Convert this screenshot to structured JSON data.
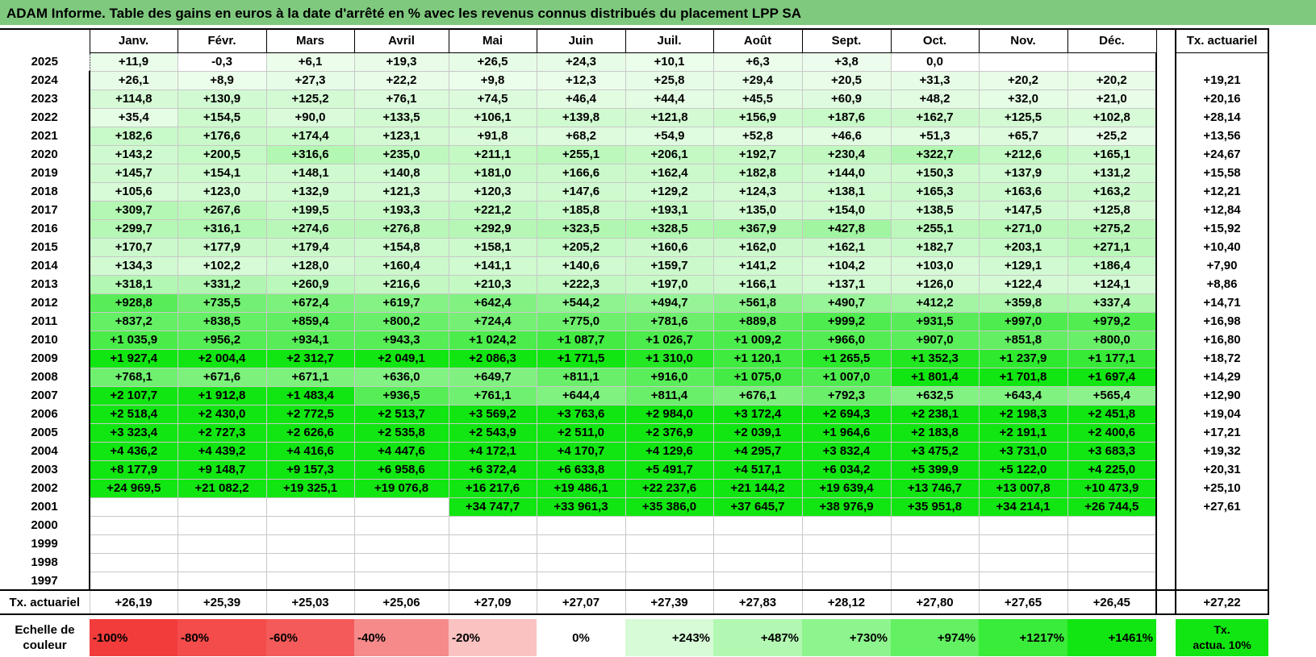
{
  "title": "ADAM Informe. Table des gains en euros à la date d'arrêté en % avec les revenus connus distribués du placement LPP SA",
  "months": [
    "Janv.",
    "Févr.",
    "Mars",
    "Avril",
    "Mai",
    "Juin",
    "Juil.",
    "Août",
    "Sept.",
    "Oct.",
    "Nov.",
    "Déc."
  ],
  "actuarial_header": "Tx. actuariel",
  "rows": [
    {
      "year": "2025",
      "values": [
        "+11,9",
        "-0,3",
        "+6,1",
        "+19,3",
        "+26,5",
        "+24,3",
        "+10,1",
        "+6,3",
        "+3,8",
        "0,0",
        "",
        ""
      ],
      "rate": ""
    },
    {
      "year": "2024",
      "values": [
        "+26,1",
        "+8,9",
        "+27,3",
        "+22,2",
        "+9,8",
        "+12,3",
        "+25,8",
        "+29,4",
        "+20,5",
        "+31,3",
        "+20,2",
        "+20,2"
      ],
      "rate": "+19,21"
    },
    {
      "year": "2023",
      "values": [
        "+114,8",
        "+130,9",
        "+125,2",
        "+76,1",
        "+74,5",
        "+46,4",
        "+44,4",
        "+45,5",
        "+60,9",
        "+48,2",
        "+32,0",
        "+21,0"
      ],
      "rate": "+20,16"
    },
    {
      "year": "2022",
      "values": [
        "+35,4",
        "+154,5",
        "+90,0",
        "+133,5",
        "+106,1",
        "+139,8",
        "+121,8",
        "+156,9",
        "+187,6",
        "+162,7",
        "+125,5",
        "+102,8"
      ],
      "rate": "+28,14"
    },
    {
      "year": "2021",
      "values": [
        "+182,6",
        "+176,6",
        "+174,4",
        "+123,1",
        "+91,8",
        "+68,2",
        "+54,9",
        "+52,8",
        "+46,6",
        "+51,3",
        "+65,7",
        "+25,2"
      ],
      "rate": "+13,56"
    },
    {
      "year": "2020",
      "values": [
        "+143,2",
        "+200,5",
        "+316,6",
        "+235,0",
        "+211,1",
        "+255,1",
        "+206,1",
        "+192,7",
        "+230,4",
        "+322,7",
        "+212,6",
        "+165,1"
      ],
      "rate": "+24,67"
    },
    {
      "year": "2019",
      "values": [
        "+145,7",
        "+154,1",
        "+148,1",
        "+140,8",
        "+181,0",
        "+166,6",
        "+162,4",
        "+182,8",
        "+144,0",
        "+150,3",
        "+137,9",
        "+131,2"
      ],
      "rate": "+15,58"
    },
    {
      "year": "2018",
      "values": [
        "+105,6",
        "+123,0",
        "+132,9",
        "+121,3",
        "+120,3",
        "+147,6",
        "+129,2",
        "+124,3",
        "+138,1",
        "+165,3",
        "+163,6",
        "+163,2"
      ],
      "rate": "+12,21"
    },
    {
      "year": "2017",
      "values": [
        "+309,7",
        "+267,6",
        "+199,5",
        "+193,3",
        "+221,2",
        "+185,8",
        "+193,1",
        "+135,0",
        "+154,0",
        "+138,5",
        "+147,5",
        "+125,8"
      ],
      "rate": "+12,84"
    },
    {
      "year": "2016",
      "values": [
        "+299,7",
        "+316,1",
        "+274,6",
        "+276,8",
        "+292,9",
        "+323,5",
        "+328,5",
        "+367,9",
        "+427,8",
        "+255,1",
        "+271,0",
        "+275,2"
      ],
      "rate": "+15,92"
    },
    {
      "year": "2015",
      "values": [
        "+170,7",
        "+177,9",
        "+179,4",
        "+154,8",
        "+158,1",
        "+205,2",
        "+160,6",
        "+162,0",
        "+162,1",
        "+182,7",
        "+203,1",
        "+271,1"
      ],
      "rate": "+10,40"
    },
    {
      "year": "2014",
      "values": [
        "+134,3",
        "+102,2",
        "+128,0",
        "+160,4",
        "+141,1",
        "+140,6",
        "+159,7",
        "+141,2",
        "+104,2",
        "+103,0",
        "+129,1",
        "+186,4"
      ],
      "rate": "+7,90"
    },
    {
      "year": "2013",
      "values": [
        "+318,1",
        "+331,2",
        "+260,9",
        "+216,6",
        "+210,3",
        "+222,3",
        "+197,0",
        "+166,1",
        "+137,1",
        "+126,0",
        "+122,4",
        "+124,1"
      ],
      "rate": "+8,86"
    },
    {
      "year": "2012",
      "values": [
        "+928,8",
        "+735,5",
        "+672,4",
        "+619,7",
        "+642,4",
        "+544,2",
        "+494,7",
        "+561,8",
        "+490,7",
        "+412,2",
        "+359,8",
        "+337,4"
      ],
      "rate": "+14,71"
    },
    {
      "year": "2011",
      "values": [
        "+837,2",
        "+838,5",
        "+859,4",
        "+800,2",
        "+724,4",
        "+775,0",
        "+781,6",
        "+889,8",
        "+999,2",
        "+931,5",
        "+997,0",
        "+979,2"
      ],
      "rate": "+16,98"
    },
    {
      "year": "2010",
      "values": [
        "+1 035,9",
        "+956,2",
        "+934,1",
        "+943,3",
        "+1 024,2",
        "+1 087,7",
        "+1 026,7",
        "+1 009,2",
        "+966,0",
        "+907,0",
        "+851,8",
        "+800,0"
      ],
      "rate": "+16,80"
    },
    {
      "year": "2009",
      "values": [
        "+1 927,4",
        "+2 004,4",
        "+2 312,7",
        "+2 049,1",
        "+2 086,3",
        "+1 771,5",
        "+1 310,0",
        "+1 120,1",
        "+1 265,5",
        "+1 352,3",
        "+1 237,9",
        "+1 177,1"
      ],
      "rate": "+18,72"
    },
    {
      "year": "2008",
      "values": [
        "+768,1",
        "+671,6",
        "+671,1",
        "+636,0",
        "+649,7",
        "+811,1",
        "+916,0",
        "+1 075,0",
        "+1 007,0",
        "+1 801,4",
        "+1 701,8",
        "+1 697,4"
      ],
      "rate": "+14,29"
    },
    {
      "year": "2007",
      "values": [
        "+2 107,7",
        "+1 912,8",
        "+1 483,4",
        "+936,5",
        "+761,1",
        "+644,4",
        "+811,4",
        "+676,1",
        "+792,3",
        "+632,5",
        "+643,4",
        "+565,4"
      ],
      "rate": "+12,90"
    },
    {
      "year": "2006",
      "values": [
        "+2 518,4",
        "+2 430,0",
        "+2 772,5",
        "+2 513,7",
        "+3 569,2",
        "+3 763,6",
        "+2 984,0",
        "+3 172,4",
        "+2 694,3",
        "+2 238,1",
        "+2 198,3",
        "+2 451,8"
      ],
      "rate": "+19,04"
    },
    {
      "year": "2005",
      "values": [
        "+3 323,4",
        "+2 727,3",
        "+2 626,6",
        "+2 535,8",
        "+2 543,9",
        "+2 511,0",
        "+2 376,9",
        "+2 039,1",
        "+1 964,6",
        "+2 183,8",
        "+2 191,1",
        "+2 400,6"
      ],
      "rate": "+17,21"
    },
    {
      "year": "2004",
      "values": [
        "+4 436,2",
        "+4 439,2",
        "+4 416,6",
        "+4 447,6",
        "+4 172,1",
        "+4 170,7",
        "+4 129,6",
        "+4 295,7",
        "+3 832,4",
        "+3 475,2",
        "+3 731,0",
        "+3 683,3"
      ],
      "rate": "+19,32"
    },
    {
      "year": "2003",
      "values": [
        "+8 177,9",
        "+9 148,7",
        "+9 157,3",
        "+6 958,6",
        "+6 372,4",
        "+6 633,8",
        "+5 491,7",
        "+4 517,1",
        "+6 034,2",
        "+5 399,9",
        "+5 122,0",
        "+4 225,0"
      ],
      "rate": "+20,31"
    },
    {
      "year": "2002",
      "values": [
        "+24 969,5",
        "+21 082,2",
        "+19 325,1",
        "+19 076,8",
        "+16 217,6",
        "+19 486,1",
        "+22 237,6",
        "+21 144,2",
        "+19 639,4",
        "+13 746,7",
        "+13 007,8",
        "+10 473,9"
      ],
      "rate": "+25,10"
    },
    {
      "year": "2001",
      "values": [
        "",
        "",
        "",
        "",
        "+34 747,7",
        "+33 961,3",
        "+35 386,0",
        "+37 645,7",
        "+38 976,9",
        "+35 951,8",
        "+34 214,1",
        "+26 744,5"
      ],
      "rate": "+27,61"
    },
    {
      "year": "2000",
      "values": [
        "",
        "",
        "",
        "",
        "",
        "",
        "",
        "",
        "",
        "",
        "",
        ""
      ],
      "rate": ""
    },
    {
      "year": "1999",
      "values": [
        "",
        "",
        "",
        "",
        "",
        "",
        "",
        "",
        "",
        "",
        "",
        ""
      ],
      "rate": ""
    },
    {
      "year": "1998",
      "values": [
        "",
        "",
        "",
        "",
        "",
        "",
        "",
        "",
        "",
        "",
        "",
        ""
      ],
      "rate": ""
    },
    {
      "year": "1997",
      "values": [
        "",
        "",
        "",
        "",
        "",
        "",
        "",
        "",
        "",
        "",
        "",
        ""
      ],
      "rate": ""
    }
  ],
  "totals": {
    "label": "Tx. actuariel",
    "values": [
      "+26,19",
      "+25,39",
      "+25,03",
      "+25,06",
      "+27,09",
      "+27,07",
      "+27,39",
      "+27,83",
      "+28,12",
      "+27,80",
      "+27,65",
      "+26,45"
    ],
    "rate": "+27,22"
  },
  "scale": {
    "label_line1": "Echelle de",
    "label_line2": "couleur",
    "steps": [
      {
        "label": "-100%",
        "color": "#f23c3c",
        "kind": "neg"
      },
      {
        "label": "-80%",
        "color": "#f44b4b",
        "kind": "neg"
      },
      {
        "label": "-60%",
        "color": "#f45a5a",
        "kind": "neg"
      },
      {
        "label": "-40%",
        "color": "#f68a8a",
        "kind": "neg"
      },
      {
        "label": "-20%",
        "color": "#fbc2c2",
        "kind": "neg"
      },
      {
        "label": "0%",
        "color": "#ffffff",
        "kind": "zero"
      },
      {
        "label": "+243%",
        "color": "#d6fbd6",
        "kind": "pos"
      },
      {
        "label": "+487%",
        "color": "#b2f8b2",
        "kind": "pos"
      },
      {
        "label": "+730%",
        "color": "#8ef58e",
        "kind": "pos"
      },
      {
        "label": "+974%",
        "color": "#63f063",
        "kind": "pos"
      },
      {
        "label": "+1217%",
        "color": "#3aec3a",
        "kind": "pos"
      },
      {
        "label": "+1461%",
        "color": "#12e612",
        "kind": "pos"
      }
    ],
    "actuarial_line1": "Tx.",
    "actuarial_line2": "actua. 10%",
    "actuarial_color": "#12e612"
  },
  "colors": {
    "title_bg": "#7fc97f",
    "green_max": "#12e612",
    "green_light": "#eafdea"
  }
}
